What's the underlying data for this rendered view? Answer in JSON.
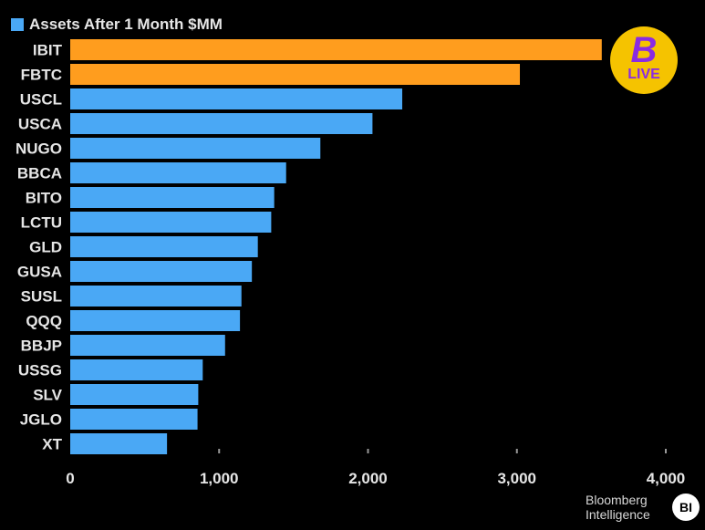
{
  "chart_data": {
    "type": "bar",
    "orientation": "horizontal",
    "categories": [
      "IBIT",
      "FBTC",
      "USCL",
      "USCA",
      "NUGO",
      "BBCA",
      "BITO",
      "LCTU",
      "GLD",
      "GUSA",
      "SUSL",
      "QQQ",
      "BBJP",
      "USSG",
      "SLV",
      "JGLO",
      "XT"
    ],
    "series": [
      {
        "name": "Assets After 1 Month $MM",
        "values": [
          3570,
          3020,
          2230,
          2030,
          1680,
          1450,
          1370,
          1350,
          1260,
          1220,
          1150,
          1140,
          1040,
          890,
          860,
          855,
          650
        ]
      }
    ],
    "xlim": [
      0,
      4000
    ],
    "x_ticks": [
      "0",
      "1,000",
      "2,000",
      "3,000",
      "4,000"
    ],
    "colors": {
      "default_bar": "#4aa8f5",
      "highlight_bar": "#ff9d1e",
      "highlighted": [
        "IBIT",
        "FBTC"
      ]
    },
    "legend_position": "top-left",
    "grid": false
  },
  "legend": {
    "label": "Assets After 1 Month $MM"
  },
  "badge": {
    "live": "LIVE",
    "glyph": "B"
  },
  "branding": {
    "line1": "Bloomberg",
    "line2": "Intelligence",
    "bi": "BI"
  }
}
